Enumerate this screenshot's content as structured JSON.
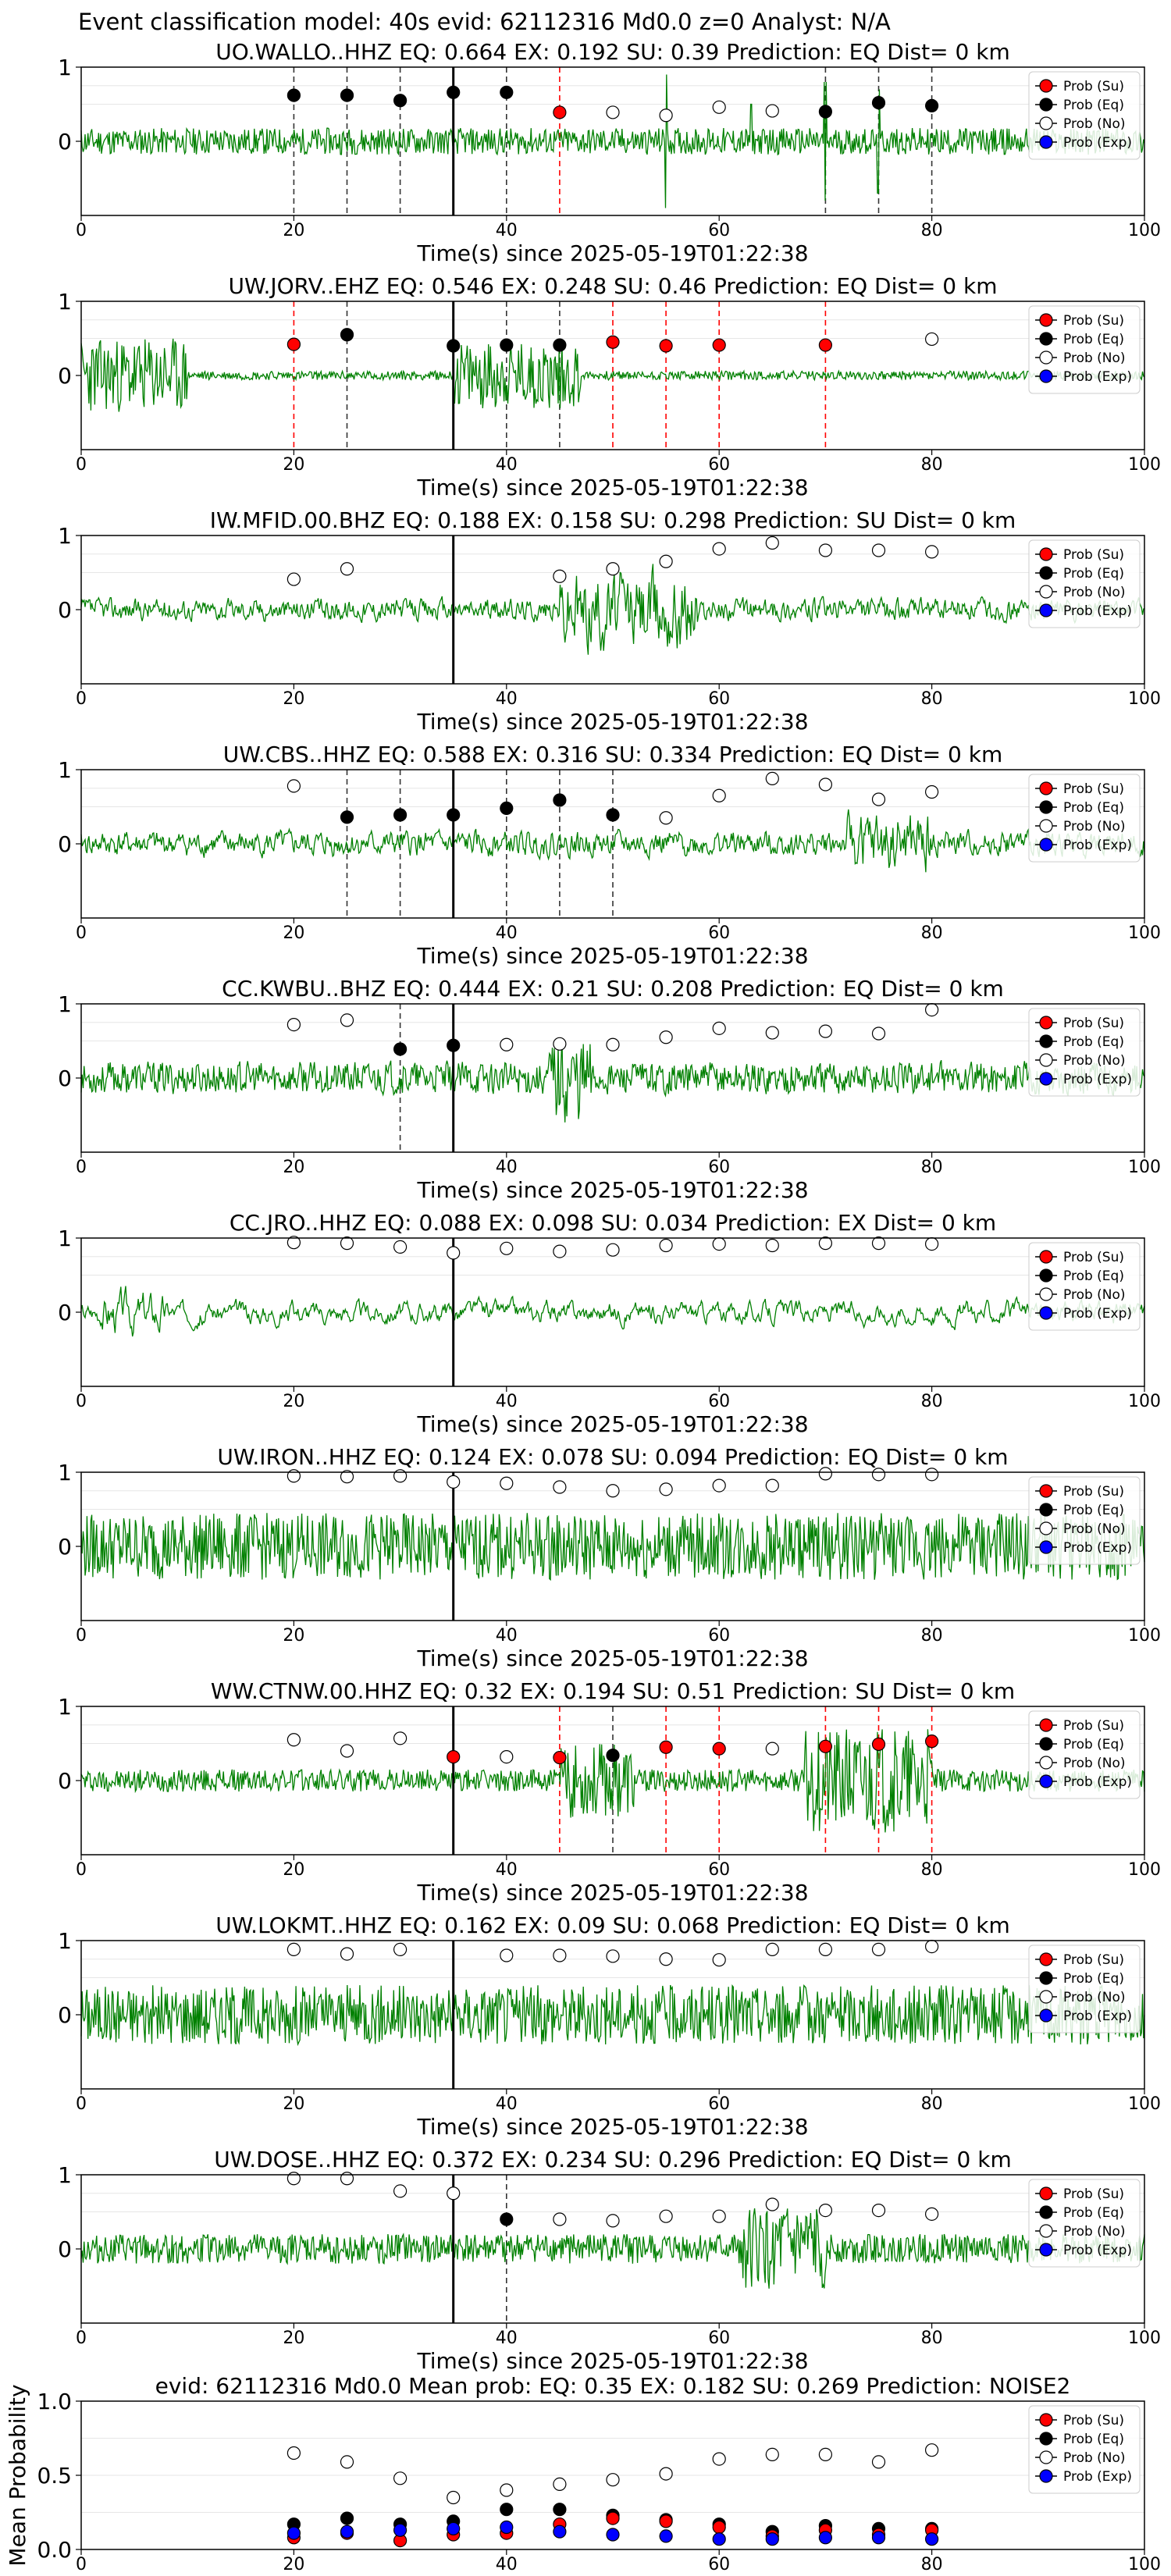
{
  "figure_title": "Event classification model: 40s evid: 62112316 Md0.0 z=0 Analyst: N/A",
  "legend_labels": [
    "Prob (Su)",
    "Prob (Eq)",
    "Prob (No)",
    "Prob (Exp)"
  ],
  "colors": {
    "trace": "#008000",
    "su": "#ff0000",
    "eq": "#000000",
    "no": "#ffffff",
    "exp": "#0000ff"
  },
  "x_ticks": [
    0,
    20,
    40,
    60,
    80,
    100
  ],
  "chart_data": [
    {
      "type": "scatter",
      "title": "UO.WALLO..HHZ   EQ: 0.664  EX: 0.192  SU: 0.39   Prediction: EQ    Dist= 0 km",
      "xlabel": "Time(s) since 2025-05-19T01:22:38",
      "ylabel": "",
      "xlim": [
        0,
        100
      ],
      "ylim": [
        -1,
        1
      ],
      "yticks": [
        0,
        1
      ],
      "trace": {
        "seed": 11,
        "amp": 0.18,
        "spikes": [
          [
            55,
            0.9
          ],
          [
            70,
            0.8
          ],
          [
            75,
            0.7
          ],
          [
            63,
            0.5
          ]
        ]
      },
      "pick_time": 35,
      "markers": [
        {
          "x": 20,
          "y": 0.62,
          "cls": "eq"
        },
        {
          "x": 25,
          "y": 0.62,
          "cls": "eq"
        },
        {
          "x": 30,
          "y": 0.55,
          "cls": "eq"
        },
        {
          "x": 35,
          "y": 0.66,
          "cls": "eq"
        },
        {
          "x": 40,
          "y": 0.66,
          "cls": "eq"
        },
        {
          "x": 45,
          "y": 0.39,
          "cls": "su"
        },
        {
          "x": 50,
          "y": 0.39,
          "cls": "no"
        },
        {
          "x": 55,
          "y": 0.35,
          "cls": "no"
        },
        {
          "x": 60,
          "y": 0.46,
          "cls": "no"
        },
        {
          "x": 65,
          "y": 0.41,
          "cls": "no"
        },
        {
          "x": 70,
          "y": 0.4,
          "cls": "eq"
        },
        {
          "x": 75,
          "y": 0.52,
          "cls": "eq"
        },
        {
          "x": 80,
          "y": 0.48,
          "cls": "eq"
        }
      ]
    },
    {
      "type": "scatter",
      "title": "UW.JORV..EHZ   EQ: 0.546  EX: 0.248  SU: 0.46   Prediction: EQ    Dist= 0 km",
      "xlabel": "Time(s) since 2025-05-19T01:22:38",
      "ylabel": "",
      "xlim": [
        0,
        100
      ],
      "ylim": [
        -1,
        1
      ],
      "yticks": [
        0,
        1
      ],
      "trace": {
        "seed": 23,
        "amp": 0.06,
        "burst": [
          0,
          10,
          0.5
        ],
        "burst2": [
          35,
          47,
          0.45
        ]
      },
      "pick_time": 35,
      "markers": [
        {
          "x": 20,
          "y": 0.42,
          "cls": "su"
        },
        {
          "x": 25,
          "y": 0.55,
          "cls": "eq"
        },
        {
          "x": 35,
          "y": 0.4,
          "cls": "eq"
        },
        {
          "x": 40,
          "y": 0.41,
          "cls": "eq"
        },
        {
          "x": 45,
          "y": 0.41,
          "cls": "eq"
        },
        {
          "x": 50,
          "y": 0.45,
          "cls": "su"
        },
        {
          "x": 55,
          "y": 0.4,
          "cls": "su"
        },
        {
          "x": 60,
          "y": 0.41,
          "cls": "su"
        },
        {
          "x": 70,
          "y": 0.41,
          "cls": "su"
        },
        {
          "x": 80,
          "y": 0.49,
          "cls": "no"
        }
      ]
    },
    {
      "type": "scatter",
      "title": "IW.MFID.00.BHZ   EQ: 0.188  EX: 0.158  SU: 0.298   Prediction: SU    Dist= 0 km",
      "xlabel": "Time(s) since 2025-05-19T01:22:38",
      "ylabel": "",
      "xlim": [
        0,
        100
      ],
      "ylim": [
        -1,
        1
      ],
      "yticks": [
        0,
        1
      ],
      "trace": {
        "seed": 37,
        "amp": 0.22,
        "smooth": 3,
        "burst": [
          45,
          58,
          0.8
        ]
      },
      "pick_time": 35,
      "markers": [
        {
          "x": 20,
          "y": 0.41,
          "cls": "no"
        },
        {
          "x": 25,
          "y": 0.55,
          "cls": "no"
        },
        {
          "x": 45,
          "y": 0.45,
          "cls": "no"
        },
        {
          "x": 50,
          "y": 0.55,
          "cls": "no"
        },
        {
          "x": 55,
          "y": 0.65,
          "cls": "no"
        },
        {
          "x": 60,
          "y": 0.82,
          "cls": "no"
        },
        {
          "x": 65,
          "y": 0.9,
          "cls": "no"
        },
        {
          "x": 70,
          "y": 0.8,
          "cls": "no"
        },
        {
          "x": 75,
          "y": 0.8,
          "cls": "no"
        },
        {
          "x": 80,
          "y": 0.78,
          "cls": "no"
        }
      ]
    },
    {
      "type": "scatter",
      "title": "UW.CBS..HHZ   EQ: 0.588  EX: 0.316  SU: 0.334   Prediction: EQ    Dist= 0 km",
      "xlabel": "Time(s) since 2025-05-19T01:22:38",
      "ylabel": "",
      "xlim": [
        0,
        100
      ],
      "ylim": [
        -1,
        1
      ],
      "yticks": [
        0,
        1
      ],
      "trace": {
        "seed": 41,
        "amp": 0.25,
        "smooth": 3,
        "burst": [
          72,
          80,
          0.6
        ]
      },
      "pick_time": 35,
      "markers": [
        {
          "x": 20,
          "y": 0.78,
          "cls": "no"
        },
        {
          "x": 25,
          "y": 0.36,
          "cls": "eq"
        },
        {
          "x": 30,
          "y": 0.39,
          "cls": "eq"
        },
        {
          "x": 35,
          "y": 0.39,
          "cls": "eq"
        },
        {
          "x": 40,
          "y": 0.48,
          "cls": "eq"
        },
        {
          "x": 45,
          "y": 0.59,
          "cls": "eq"
        },
        {
          "x": 50,
          "y": 0.39,
          "cls": "eq"
        },
        {
          "x": 55,
          "y": 0.35,
          "cls": "no"
        },
        {
          "x": 60,
          "y": 0.65,
          "cls": "no"
        },
        {
          "x": 65,
          "y": 0.88,
          "cls": "no"
        },
        {
          "x": 70,
          "y": 0.8,
          "cls": "no"
        },
        {
          "x": 75,
          "y": 0.6,
          "cls": "no"
        },
        {
          "x": 80,
          "y": 0.7,
          "cls": "no"
        }
      ]
    },
    {
      "type": "scatter",
      "title": "CC.KWBU..BHZ   EQ: 0.444  EX: 0.21  SU: 0.208   Prediction: EQ    Dist= 0 km",
      "xlabel": "Time(s) since 2025-05-19T01:22:38",
      "ylabel": "",
      "xlim": [
        0,
        100
      ],
      "ylim": [
        -1,
        1
      ],
      "yticks": [
        0,
        1
      ],
      "trace": {
        "seed": 53,
        "amp": 0.25,
        "smooth": 2,
        "burst": [
          44,
          48,
          0.7
        ]
      },
      "pick_time": 35,
      "markers": [
        {
          "x": 20,
          "y": 0.72,
          "cls": "no"
        },
        {
          "x": 25,
          "y": 0.78,
          "cls": "no"
        },
        {
          "x": 30,
          "y": 0.39,
          "cls": "eq"
        },
        {
          "x": 35,
          "y": 0.44,
          "cls": "eq"
        },
        {
          "x": 40,
          "y": 0.45,
          "cls": "no"
        },
        {
          "x": 45,
          "y": 0.46,
          "cls": "no"
        },
        {
          "x": 50,
          "y": 0.45,
          "cls": "no"
        },
        {
          "x": 55,
          "y": 0.55,
          "cls": "no"
        },
        {
          "x": 60,
          "y": 0.67,
          "cls": "no"
        },
        {
          "x": 65,
          "y": 0.61,
          "cls": "no"
        },
        {
          "x": 70,
          "y": 0.63,
          "cls": "no"
        },
        {
          "x": 75,
          "y": 0.6,
          "cls": "no"
        },
        {
          "x": 80,
          "y": 0.92,
          "cls": "no"
        }
      ]
    },
    {
      "type": "scatter",
      "title": "CC.JRO..HHZ   EQ: 0.088  EX: 0.098  SU: 0.034   Prediction: EX    Dist= 0 km",
      "xlabel": "Time(s) since 2025-05-19T01:22:38",
      "ylabel": "",
      "xlim": [
        0,
        100
      ],
      "ylim": [
        -1,
        1
      ],
      "yticks": [
        0,
        1
      ],
      "trace": {
        "seed": 67,
        "amp": 0.35,
        "smooth": 6,
        "burst": [
          2,
          8,
          0.7
        ]
      },
      "pick_time": 35,
      "markers": [
        {
          "x": 20,
          "y": 0.94,
          "cls": "no"
        },
        {
          "x": 25,
          "y": 0.93,
          "cls": "no"
        },
        {
          "x": 30,
          "y": 0.88,
          "cls": "no"
        },
        {
          "x": 35,
          "y": 0.8,
          "cls": "no"
        },
        {
          "x": 40,
          "y": 0.86,
          "cls": "no"
        },
        {
          "x": 45,
          "y": 0.82,
          "cls": "no"
        },
        {
          "x": 50,
          "y": 0.84,
          "cls": "no"
        },
        {
          "x": 55,
          "y": 0.9,
          "cls": "no"
        },
        {
          "x": 60,
          "y": 0.92,
          "cls": "no"
        },
        {
          "x": 65,
          "y": 0.9,
          "cls": "no"
        },
        {
          "x": 70,
          "y": 0.93,
          "cls": "no"
        },
        {
          "x": 75,
          "y": 0.93,
          "cls": "no"
        },
        {
          "x": 80,
          "y": 0.92,
          "cls": "no"
        }
      ]
    },
    {
      "type": "scatter",
      "title": "UW.IRON..HHZ   EQ: 0.124  EX: 0.078  SU: 0.094   Prediction: EQ    Dist= 0 km",
      "xlabel": "Time(s) since 2025-05-19T01:22:38",
      "ylabel": "",
      "xlim": [
        0,
        100
      ],
      "ylim": [
        -1,
        1
      ],
      "yticks": [
        0,
        1
      ],
      "trace": {
        "seed": 79,
        "amp": 0.45,
        "smooth": 1
      },
      "pick_time": 35,
      "markers": [
        {
          "x": 20,
          "y": 0.95,
          "cls": "no"
        },
        {
          "x": 25,
          "y": 0.94,
          "cls": "no"
        },
        {
          "x": 30,
          "y": 0.95,
          "cls": "no"
        },
        {
          "x": 35,
          "y": 0.87,
          "cls": "no"
        },
        {
          "x": 40,
          "y": 0.85,
          "cls": "no"
        },
        {
          "x": 45,
          "y": 0.8,
          "cls": "no"
        },
        {
          "x": 50,
          "y": 0.75,
          "cls": "no"
        },
        {
          "x": 55,
          "y": 0.77,
          "cls": "no"
        },
        {
          "x": 60,
          "y": 0.82,
          "cls": "no"
        },
        {
          "x": 65,
          "y": 0.82,
          "cls": "no"
        },
        {
          "x": 70,
          "y": 0.98,
          "cls": "no"
        },
        {
          "x": 75,
          "y": 0.97,
          "cls": "no"
        },
        {
          "x": 80,
          "y": 0.97,
          "cls": "no"
        }
      ]
    },
    {
      "type": "scatter",
      "title": "WW.CTNW.00.HHZ   EQ: 0.32  EX: 0.194  SU: 0.51   Prediction: SU    Dist= 0 km",
      "xlabel": "Time(s) since 2025-05-19T01:22:38",
      "ylabel": "",
      "xlim": [
        0,
        100
      ],
      "ylim": [
        -1,
        1
      ],
      "yticks": [
        0,
        1
      ],
      "trace": {
        "seed": 97,
        "amp": 0.15,
        "smooth": 1,
        "burst": [
          68,
          80,
          0.7
        ],
        "burst2": [
          45,
          52,
          0.5
        ]
      },
      "pick_time": 35,
      "markers": [
        {
          "x": 20,
          "y": 0.55,
          "cls": "no"
        },
        {
          "x": 25,
          "y": 0.4,
          "cls": "no"
        },
        {
          "x": 30,
          "y": 0.57,
          "cls": "no"
        },
        {
          "x": 35,
          "y": 0.32,
          "cls": "su"
        },
        {
          "x": 40,
          "y": 0.32,
          "cls": "no"
        },
        {
          "x": 45,
          "y": 0.31,
          "cls": "su"
        },
        {
          "x": 50,
          "y": 0.34,
          "cls": "eq"
        },
        {
          "x": 55,
          "y": 0.45,
          "cls": "su"
        },
        {
          "x": 60,
          "y": 0.43,
          "cls": "su"
        },
        {
          "x": 65,
          "y": 0.43,
          "cls": "no"
        },
        {
          "x": 70,
          "y": 0.46,
          "cls": "su"
        },
        {
          "x": 75,
          "y": 0.49,
          "cls": "su"
        },
        {
          "x": 80,
          "y": 0.53,
          "cls": "su"
        }
      ]
    },
    {
      "type": "scatter",
      "title": "UW.LOKMT..HHZ   EQ: 0.162  EX: 0.09  SU: 0.068   Prediction: EQ    Dist= 0 km",
      "xlabel": "Time(s) since 2025-05-19T01:22:38",
      "ylabel": "",
      "xlim": [
        0,
        100
      ],
      "ylim": [
        -1,
        1
      ],
      "yticks": [
        0,
        1
      ],
      "trace": {
        "seed": 101,
        "amp": 0.4,
        "smooth": 1
      },
      "pick_time": 35,
      "markers": [
        {
          "x": 20,
          "y": 0.88,
          "cls": "no"
        },
        {
          "x": 25,
          "y": 0.82,
          "cls": "no"
        },
        {
          "x": 30,
          "y": 0.88,
          "cls": "no"
        },
        {
          "x": 40,
          "y": 0.8,
          "cls": "no"
        },
        {
          "x": 45,
          "y": 0.8,
          "cls": "no"
        },
        {
          "x": 50,
          "y": 0.79,
          "cls": "no"
        },
        {
          "x": 55,
          "y": 0.75,
          "cls": "no"
        },
        {
          "x": 60,
          "y": 0.74,
          "cls": "no"
        },
        {
          "x": 65,
          "y": 0.88,
          "cls": "no"
        },
        {
          "x": 70,
          "y": 0.88,
          "cls": "no"
        },
        {
          "x": 75,
          "y": 0.88,
          "cls": "no"
        },
        {
          "x": 80,
          "y": 0.92,
          "cls": "no"
        }
      ]
    },
    {
      "type": "scatter",
      "title": "UW.DOSE..HHZ   EQ: 0.372  EX: 0.234  SU: 0.296   Prediction: EQ    Dist= 0 km",
      "xlabel": "Time(s) since 2025-05-19T01:22:38",
      "ylabel": "",
      "xlim": [
        0,
        100
      ],
      "ylim": [
        -1,
        1
      ],
      "yticks": [
        0,
        1
      ],
      "trace": {
        "seed": 113,
        "amp": 0.2,
        "smooth": 1,
        "burst": [
          62,
          70,
          0.55
        ]
      },
      "pick_time": 35,
      "markers": [
        {
          "x": 20,
          "y": 0.95,
          "cls": "no"
        },
        {
          "x": 25,
          "y": 0.95,
          "cls": "no"
        },
        {
          "x": 30,
          "y": 0.78,
          "cls": "no"
        },
        {
          "x": 35,
          "y": 0.75,
          "cls": "no"
        },
        {
          "x": 40,
          "y": 0.4,
          "cls": "eq"
        },
        {
          "x": 45,
          "y": 0.4,
          "cls": "no"
        },
        {
          "x": 50,
          "y": 0.38,
          "cls": "no"
        },
        {
          "x": 55,
          "y": 0.44,
          "cls": "no"
        },
        {
          "x": 60,
          "y": 0.44,
          "cls": "no"
        },
        {
          "x": 65,
          "y": 0.6,
          "cls": "no"
        },
        {
          "x": 70,
          "y": 0.52,
          "cls": "no"
        },
        {
          "x": 75,
          "y": 0.52,
          "cls": "no"
        },
        {
          "x": 80,
          "y": 0.47,
          "cls": "no"
        }
      ]
    },
    {
      "type": "scatter",
      "title": "evid: 62112316  Md0.0   Mean prob:   EQ: 0.35  EX: 0.182  SU: 0.269   Prediction: NOISE2",
      "xlabel": "",
      "ylabel": "Mean Probability",
      "xlim": [
        0,
        100
      ],
      "ylim": [
        0,
        1
      ],
      "yticks": [
        0.0,
        0.5,
        1.0
      ],
      "summary": true,
      "x": [
        20,
        25,
        30,
        35,
        40,
        45,
        50,
        55,
        60,
        65,
        70,
        75,
        80
      ],
      "series": [
        {
          "name": "Prob (No)",
          "cls": "no",
          "values": [
            0.65,
            0.59,
            0.48,
            0.35,
            0.4,
            0.44,
            0.47,
            0.51,
            0.61,
            0.64,
            0.64,
            0.59,
            0.67
          ]
        },
        {
          "name": "Prob (Eq)",
          "cls": "eq",
          "values": [
            0.17,
            0.21,
            0.17,
            0.19,
            0.27,
            0.27,
            0.23,
            0.2,
            0.17,
            0.12,
            0.16,
            0.14,
            0.14
          ]
        },
        {
          "name": "Prob (Su)",
          "cls": "su",
          "values": [
            0.08,
            0.11,
            0.06,
            0.1,
            0.11,
            0.17,
            0.21,
            0.19,
            0.15,
            0.09,
            0.13,
            0.1,
            0.13
          ]
        },
        {
          "name": "Prob (Exp)",
          "cls": "exp",
          "values": [
            0.11,
            0.12,
            0.13,
            0.14,
            0.15,
            0.12,
            0.1,
            0.09,
            0.07,
            0.07,
            0.08,
            0.08,
            0.07
          ]
        }
      ]
    }
  ]
}
